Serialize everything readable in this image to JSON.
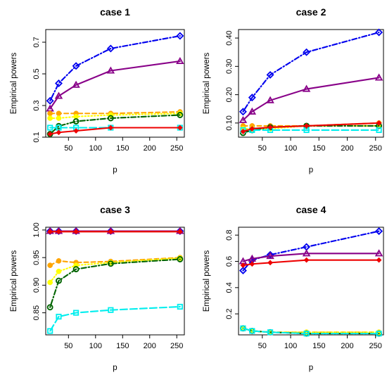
{
  "chart_data": [
    {
      "type": "line",
      "title": "case 1",
      "xlabel": "p",
      "ylabel": "Empirical powers",
      "x": [
        16,
        32,
        64,
        128,
        256
      ],
      "xlim": [
        8,
        264
      ],
      "xticks": [
        50,
        100,
        150,
        200,
        250
      ],
      "ylim": [
        0.1,
        0.78
      ],
      "yticks": [
        0.1,
        0.3,
        0.5,
        0.7
      ],
      "ytick_labels": [
        "0.1",
        "0.3",
        "0.5",
        "0.7"
      ],
      "series": [
        {
          "color": "#0000ee",
          "dash": "dotdash",
          "marker": "diamond",
          "values": [
            0.33,
            0.44,
            0.55,
            0.66,
            0.74
          ]
        },
        {
          "color": "#880088",
          "dash": "solid",
          "marker": "triangle",
          "values": [
            0.28,
            0.36,
            0.43,
            0.52,
            0.58
          ]
        },
        {
          "color": "#ffa500",
          "dash": "dashed",
          "marker": "circle-filled",
          "values": [
            0.25,
            0.25,
            0.25,
            0.25,
            0.26
          ]
        },
        {
          "color": "#ffff00",
          "dash": "dotted",
          "marker": "circle-filled",
          "values": [
            0.22,
            0.22,
            0.23,
            0.24,
            0.25
          ]
        },
        {
          "color": "#006400",
          "dash": "dotdash",
          "marker": "circle-open",
          "values": [
            0.12,
            0.17,
            0.2,
            0.22,
            0.24
          ]
        },
        {
          "color": "#00eeee",
          "dash": "longdash",
          "marker": "square",
          "values": [
            0.16,
            0.16,
            0.16,
            0.16,
            0.16
          ]
        },
        {
          "color": "#ee0000",
          "dash": "solid",
          "marker": "diamond-filled",
          "values": [
            0.12,
            0.13,
            0.14,
            0.16,
            0.16
          ]
        }
      ]
    },
    {
      "type": "line",
      "title": "case 2",
      "xlabel": "p",
      "ylabel": "Empirical powers",
      "x": [
        16,
        32,
        64,
        128,
        256
      ],
      "xlim": [
        8,
        264
      ],
      "xticks": [
        50,
        100,
        150,
        200,
        250
      ],
      "ylim": [
        0.05,
        0.43
      ],
      "yticks": [
        0.1,
        0.2,
        0.3,
        0.4
      ],
      "ytick_labels": [
        "0.10",
        "0.20",
        "0.30",
        "0.40"
      ],
      "series": [
        {
          "color": "#0000ee",
          "dash": "dotdash",
          "marker": "diamond",
          "values": [
            0.14,
            0.19,
            0.27,
            0.35,
            0.42
          ]
        },
        {
          "color": "#880088",
          "dash": "solid",
          "marker": "triangle",
          "values": [
            0.11,
            0.14,
            0.18,
            0.22,
            0.26
          ]
        },
        {
          "color": "#ffa500",
          "dash": "dashed",
          "marker": "circle-filled",
          "values": [
            0.09,
            0.09,
            0.09,
            0.09,
            0.1
          ]
        },
        {
          "color": "#ffff00",
          "dash": "dotted",
          "marker": "circle-filled",
          "values": [
            0.08,
            0.08,
            0.08,
            0.09,
            0.09
          ]
        },
        {
          "color": "#006400",
          "dash": "dotdash",
          "marker": "circle-open",
          "values": [
            0.065,
            0.075,
            0.085,
            0.09,
            0.09
          ]
        },
        {
          "color": "#00eeee",
          "dash": "longdash",
          "marker": "square",
          "values": [
            0.075,
            0.075,
            0.075,
            0.075,
            0.075
          ]
        },
        {
          "color": "#ee0000",
          "dash": "solid",
          "marker": "diamond-filled",
          "values": [
            0.07,
            0.08,
            0.085,
            0.09,
            0.1
          ]
        }
      ]
    },
    {
      "type": "line",
      "title": "case 3",
      "xlabel": "p",
      "ylabel": "Empirical powers",
      "x": [
        16,
        32,
        64,
        128,
        256
      ],
      "xlim": [
        8,
        264
      ],
      "xticks": [
        50,
        100,
        150,
        200,
        250
      ],
      "ylim": [
        0.81,
        1.005
      ],
      "yticks": [
        0.85,
        0.9,
        0.95,
        1.0
      ],
      "ytick_labels": [
        "0.85",
        "0.90",
        "0.95",
        "1.00"
      ],
      "series": [
        {
          "color": "#0000ee",
          "dash": "dotdash",
          "marker": "diamond",
          "values": [
            0.998,
            0.998,
            0.998,
            0.998,
            0.998
          ]
        },
        {
          "color": "#880088",
          "dash": "solid",
          "marker": "triangle",
          "values": [
            0.998,
            0.998,
            0.998,
            0.998,
            0.998
          ]
        },
        {
          "color": "#ee0000",
          "dash": "solid",
          "marker": "diamond-filled",
          "values": [
            0.997,
            0.997,
            0.997,
            0.997,
            0.997
          ]
        },
        {
          "color": "#ffa500",
          "dash": "dashed",
          "marker": "circle-filled",
          "values": [
            0.936,
            0.944,
            0.941,
            0.943,
            0.95
          ]
        },
        {
          "color": "#ffff00",
          "dash": "dotted",
          "marker": "circle-filled",
          "values": [
            0.905,
            0.925,
            0.936,
            0.941,
            0.949
          ]
        },
        {
          "color": "#006400",
          "dash": "dotdash",
          "marker": "circle-open",
          "values": [
            0.86,
            0.908,
            0.929,
            0.939,
            0.947
          ]
        },
        {
          "color": "#00eeee",
          "dash": "longdash",
          "marker": "square",
          "values": [
            0.817,
            0.843,
            0.85,
            0.855,
            0.861
          ]
        }
      ]
    },
    {
      "type": "line",
      "title": "case 4",
      "xlabel": "p",
      "ylabel": "Empirical powers",
      "x": [
        16,
        32,
        64,
        128,
        256
      ],
      "xlim": [
        8,
        264
      ],
      "xticks": [
        50,
        100,
        150,
        200,
        250
      ],
      "ylim": [
        0.04,
        0.86
      ],
      "yticks": [
        0.2,
        0.4,
        0.6,
        0.8
      ],
      "ytick_labels": [
        "0.2",
        "0.4",
        "0.6",
        "0.8"
      ],
      "series": [
        {
          "color": "#0000ee",
          "dash": "dotdash",
          "marker": "diamond",
          "values": [
            0.53,
            0.61,
            0.65,
            0.71,
            0.83
          ]
        },
        {
          "color": "#880088",
          "dash": "solid",
          "marker": "triangle",
          "values": [
            0.6,
            0.62,
            0.64,
            0.66,
            0.66
          ]
        },
        {
          "color": "#ee0000",
          "dash": "solid",
          "marker": "diamond-filled",
          "values": [
            0.57,
            0.58,
            0.59,
            0.61,
            0.61
          ]
        },
        {
          "color": "#ffa500",
          "dash": "dashed",
          "marker": "circle-filled",
          "values": [
            0.09,
            0.07,
            0.06,
            0.06,
            0.06
          ]
        },
        {
          "color": "#ffff00",
          "dash": "dotted",
          "marker": "circle-filled",
          "values": [
            0.09,
            0.07,
            0.06,
            0.06,
            0.06
          ]
        },
        {
          "color": "#006400",
          "dash": "dotdash",
          "marker": "circle-open",
          "values": [
            0.09,
            0.07,
            0.06,
            0.05,
            0.05
          ]
        },
        {
          "color": "#00eeee",
          "dash": "longdash",
          "marker": "square",
          "values": [
            0.09,
            0.07,
            0.06,
            0.05,
            0.05
          ]
        }
      ]
    }
  ]
}
